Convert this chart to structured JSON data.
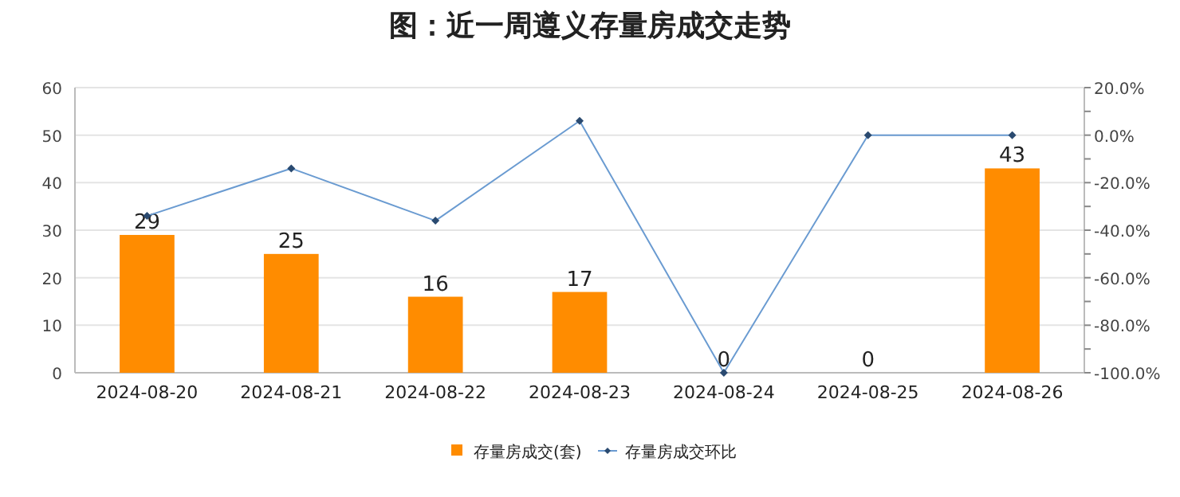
{
  "chart_data": {
    "type": "bar",
    "title": "图：近一周遵义存量房成交走势",
    "categories": [
      "2024-08-20",
      "2024-08-21",
      "2024-08-22",
      "2024-08-23",
      "2024-08-24",
      "2024-08-25",
      "2024-08-26"
    ],
    "series": [
      {
        "name": "存量房成交(套)",
        "color": "#ff8c00",
        "values": [
          29,
          25,
          16,
          17,
          0,
          0,
          43
        ],
        "value_labels": [
          "29",
          "25",
          "16",
          "17",
          "0",
          "0",
          "43"
        ]
      },
      {
        "name": "存量房成交环比",
        "type": "line",
        "axis": "y2",
        "color": "#6a9bd1",
        "marker": "diamond",
        "values": [
          -34,
          -14,
          -36,
          6,
          -100,
          0,
          0
        ]
      }
    ],
    "ylim": [
      0,
      60
    ],
    "yticks": [
      0,
      10,
      20,
      30,
      40,
      50,
      60
    ],
    "y2lim": [
      -100,
      20
    ],
    "y2ticks": [
      {
        "value": -100,
        "label": "-100.0%"
      },
      {
        "value": -90,
        "label": null
      },
      {
        "value": -80,
        "label": "-80.0%"
      },
      {
        "value": -70,
        "label": null
      },
      {
        "value": -60,
        "label": "-60.0%"
      },
      {
        "value": -50,
        "label": null
      },
      {
        "value": -40,
        "label": "-40.0%"
      },
      {
        "value": -30,
        "label": null
      },
      {
        "value": -20,
        "label": "-20.0%"
      },
      {
        "value": -10,
        "label": null
      },
      {
        "value": 0,
        "label": "0.0%"
      },
      {
        "value": 10,
        "label": null
      },
      {
        "value": 20,
        "label": "20.0%"
      }
    ],
    "grid": "y",
    "legend": "bottom"
  }
}
